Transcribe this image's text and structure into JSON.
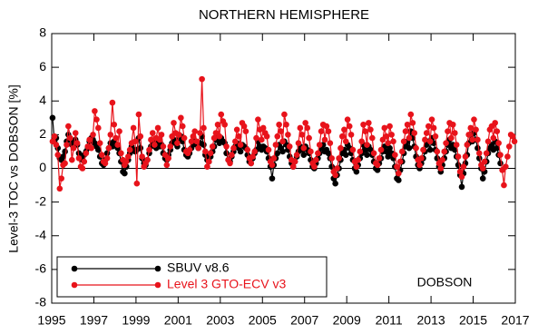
{
  "chart_data": {
    "type": "line",
    "title": "NORTHERN HEMISPHERE",
    "ylabel": "Level-3 TOC vs DOBSON [%]",
    "annotation": "DOBSON",
    "xlim": [
      1995,
      2017
    ],
    "xticks": [
      1995,
      1997,
      1999,
      2001,
      2003,
      2005,
      2007,
      2009,
      2011,
      2013,
      2015,
      2017
    ],
    "ylim": [
      -8,
      8
    ],
    "yticks": [
      -8,
      -6,
      -4,
      -2,
      0,
      2,
      4,
      6,
      8
    ],
    "zero_line": true,
    "legend": "lower left",
    "x": [
      1995.04,
      1995.13,
      1995.21,
      1995.29,
      1995.38,
      1995.46,
      1995.54,
      1995.63,
      1995.71,
      1995.79,
      1995.88,
      1995.96,
      1996.04,
      1996.13,
      1996.21,
      1996.29,
      1996.38,
      1996.46,
      1996.54,
      1996.63,
      1996.71,
      1996.79,
      1996.88,
      1996.96,
      1997.04,
      1997.13,
      1997.21,
      1997.29,
      1997.38,
      1997.46,
      1997.54,
      1997.63,
      1997.71,
      1997.79,
      1997.88,
      1997.96,
      1998.04,
      1998.13,
      1998.21,
      1998.29,
      1998.38,
      1998.46,
      1998.54,
      1998.63,
      1998.71,
      1998.79,
      1998.88,
      1998.96,
      1999.04,
      1999.13,
      1999.21,
      1999.29,
      1999.38,
      1999.46,
      1999.54,
      1999.63,
      1999.71,
      1999.79,
      1999.88,
      1999.96,
      2000.04,
      2000.13,
      2000.21,
      2000.29,
      2000.38,
      2000.46,
      2000.54,
      2000.63,
      2000.71,
      2000.79,
      2000.88,
      2000.96,
      2001.04,
      2001.13,
      2001.21,
      2001.29,
      2001.38,
      2001.46,
      2001.54,
      2001.63,
      2001.71,
      2001.79,
      2001.88,
      2001.96,
      2002.04,
      2002.13,
      2002.21,
      2002.29,
      2002.38,
      2002.46,
      2002.54,
      2002.63,
      2002.71,
      2002.79,
      2002.88,
      2002.96,
      2003.04,
      2003.13,
      2003.21,
      2003.29,
      2003.38,
      2003.46,
      2003.54,
      2003.63,
      2003.71,
      2003.79,
      2003.88,
      2003.96,
      2004.04,
      2004.13,
      2004.21,
      2004.29,
      2004.38,
      2004.46,
      2004.54,
      2004.63,
      2004.71,
      2004.79,
      2004.88,
      2004.96,
      2005.04,
      2005.13,
      2005.21,
      2005.29,
      2005.38,
      2005.46,
      2005.54,
      2005.63,
      2005.71,
      2005.79,
      2005.88,
      2005.96,
      2006.04,
      2006.13,
      2006.21,
      2006.29,
      2006.38,
      2006.46,
      2006.54,
      2006.63,
      2006.71,
      2006.79,
      2006.88,
      2006.96,
      2007.04,
      2007.13,
      2007.21,
      2007.29,
      2007.38,
      2007.46,
      2007.54,
      2007.63,
      2007.71,
      2007.79,
      2007.88,
      2007.96,
      2008.04,
      2008.13,
      2008.21,
      2008.29,
      2008.38,
      2008.46,
      2008.54,
      2008.63,
      2008.71,
      2008.79,
      2008.88,
      2008.96,
      2009.04,
      2009.13,
      2009.21,
      2009.29,
      2009.38,
      2009.46,
      2009.54,
      2009.63,
      2009.71,
      2009.79,
      2009.88,
      2009.96,
      2010.04,
      2010.13,
      2010.21,
      2010.29,
      2010.38,
      2010.46,
      2010.54,
      2010.63,
      2010.71,
      2010.79,
      2010.88,
      2010.96,
      2011.04,
      2011.13,
      2011.21,
      2011.29,
      2011.38,
      2011.46,
      2011.54,
      2011.63,
      2011.71,
      2011.79,
      2011.88,
      2011.96,
      2012.04,
      2012.13,
      2012.21,
      2012.29,
      2012.38,
      2012.46,
      2012.54,
      2012.63,
      2012.71,
      2012.79,
      2012.88,
      2012.96,
      2013.04,
      2013.13,
      2013.21,
      2013.29,
      2013.38,
      2013.46,
      2013.54,
      2013.63,
      2013.71,
      2013.79,
      2013.88,
      2013.96,
      2014.04,
      2014.13,
      2014.21,
      2014.29,
      2014.38,
      2014.46,
      2014.54,
      2014.63,
      2014.71,
      2014.79,
      2014.88,
      2014.96,
      2015.04,
      2015.13,
      2015.21,
      2015.29,
      2015.38,
      2015.46,
      2015.54,
      2015.63,
      2015.71,
      2015.79,
      2015.88,
      2015.96,
      2016.04,
      2016.13,
      2016.21,
      2016.29,
      2016.38,
      2016.46,
      2016.54,
      2016.63,
      2016.71,
      2016.79,
      2016.88,
      2016.96
    ],
    "series": [
      {
        "name": "SBUV v8.6",
        "color": "#000000",
        "values": [
          3.0,
          1.6,
          1.8,
          1.2,
          0.6,
          0.5,
          0.7,
          1.0,
          1.6,
          2.0,
          1.7,
          1.4,
          1.5,
          1.7,
          1.4,
          0.9,
          0.6,
          0.5,
          0.8,
          1.0,
          1.2,
          1.6,
          1.8,
          1.7,
          1.5,
          1.3,
          1.1,
          0.7,
          0.3,
          0.2,
          0.5,
          0.9,
          1.2,
          1.5,
          1.3,
          1.6,
          1.4,
          1.2,
          0.9,
          0.4,
          -0.2,
          -0.3,
          0.1,
          0.5,
          0.9,
          1.3,
          1.1,
          1.0,
          1.1,
          1.8,
          1.2,
          0.6,
          0.3,
          0.2,
          0.5,
          0.9,
          1.3,
          1.6,
          1.4,
          1.2,
          1.6,
          1.3,
          1.4,
          0.9,
          0.6,
          0.5,
          0.8,
          1.1,
          1.5,
          1.7,
          1.5,
          1.3,
          1.7,
          1.9,
          1.6,
          1.1,
          0.8,
          0.7,
          0.9,
          1.2,
          1.4,
          1.6,
          1.4,
          1.2,
          1.5,
          1.9,
          1.4,
          0.8,
          0.5,
          0.4,
          0.7,
          1.0,
          1.3,
          1.7,
          1.8,
          1.5,
          1.8,
          1.6,
          1.5,
          0.9,
          0.5,
          0.4,
          0.7,
          1.0,
          1.3,
          1.5,
          1.2,
          1.0,
          1.4,
          1.3,
          1.2,
          0.8,
          0.4,
          0.3,
          0.6,
          0.9,
          1.1,
          1.6,
          1.3,
          1.1,
          1.3,
          1.2,
          1.0,
          0.6,
          0.1,
          -0.6,
          0.2,
          0.6,
          0.9,
          1.4,
          1.2,
          1.0,
          1.6,
          1.4,
          1.1,
          0.7,
          0.3,
          0.1,
          0.4,
          0.7,
          1.0,
          1.3,
          1.1,
          0.8,
          1.3,
          1.1,
          0.9,
          0.5,
          0.1,
          0.0,
          0.3,
          0.6,
          0.9,
          1.2,
          1.4,
          1.0,
          1.1,
          0.9,
          0.6,
          0.1,
          -0.6,
          -0.9,
          -0.4,
          0.0,
          0.5,
          0.9,
          1.1,
          0.8,
          1.4,
          1.2,
          0.9,
          0.5,
          0.0,
          -0.2,
          0.2,
          0.6,
          0.9,
          1.4,
          1.1,
          0.8,
          1.3,
          1.1,
          0.8,
          0.4,
          0.0,
          -0.1,
          0.3,
          0.6,
          1.0,
          1.3,
          1.0,
          0.7,
          1.2,
          0.9,
          0.6,
          0.1,
          -0.6,
          -0.7,
          -0.1,
          0.4,
          0.9,
          1.3,
          1.6,
          1.2,
          2.2,
          1.8,
          1.3,
          0.7,
          0.2,
          0.0,
          0.3,
          0.6,
          1.0,
          1.4,
          1.6,
          1.1,
          1.8,
          1.5,
          1.1,
          0.6,
          0.1,
          -0.2,
          0.2,
          0.6,
          1.0,
          1.4,
          1.7,
          1.2,
          1.4,
          1.1,
          0.7,
          0.2,
          -0.4,
          -1.1,
          -0.3,
          0.3,
          0.8,
          1.5,
          2.0,
          1.6,
          2.1,
          1.7,
          1.2,
          0.6,
          0.0,
          -0.6,
          -0.2,
          0.4,
          0.9,
          1.2,
          1.4,
          1.1,
          1.6,
          1.2,
          0.8,
          0.3,
          null,
          null,
          null,
          null,
          null,
          null,
          null,
          null
        ]
      },
      {
        "name": "Level 3 GTO-ECV v3",
        "color": "#e8131b",
        "values": [
          1.6,
          1.9,
          1.4,
          0.8,
          -1.2,
          -0.6,
          0.2,
          0.3,
          1.4,
          2.5,
          1.8,
          0.5,
          1.2,
          2.1,
          1.5,
          0.6,
          0.1,
          0.0,
          0.4,
          0.9,
          1.3,
          1.7,
          1.2,
          2.0,
          3.4,
          2.9,
          2.4,
          1.5,
          0.8,
          0.4,
          0.3,
          0.6,
          1.2,
          2.0,
          3.9,
          2.6,
          1.8,
          1.4,
          2.2,
          0.9,
          0.5,
          0.2,
          0.4,
          0.7,
          1.1,
          1.5,
          2.4,
          1.6,
          -0.9,
          3.2,
          1.9,
          0.7,
          0.1,
          0.3,
          0.5,
          1.1,
          1.7,
          2.1,
          1.4,
          1.8,
          2.4,
          1.7,
          2.0,
          1.3,
          0.8,
          0.2,
          0.6,
          1.3,
          1.9,
          2.7,
          2.1,
          1.5,
          2.0,
          3.0,
          2.5,
          1.8,
          1.0,
          0.9,
          1.1,
          1.6,
          1.9,
          2.2,
          1.6,
          1.2,
          2.1,
          5.3,
          2.4,
          1.0,
          0.1,
          0.4,
          0.9,
          1.3,
          1.8,
          2.1,
          2.6,
          1.9,
          3.2,
          2.8,
          2.6,
          1.3,
          0.5,
          0.3,
          0.8,
          1.2,
          1.6,
          2.3,
          1.9,
          1.4,
          2.7,
          2.5,
          2.2,
          1.1,
          0.6,
          0.3,
          0.7,
          1.0,
          1.8,
          2.9,
          2.3,
          1.7,
          2.4,
          2.1,
          1.9,
          1.1,
          0.4,
          0.2,
          0.6,
          1.4,
          1.9,
          2.6,
          2.2,
          1.6,
          3.2,
          2.6,
          2.0,
          1.3,
          0.5,
          0.1,
          0.4,
          0.8,
          1.5,
          2.4,
          2.0,
          1.2,
          2.7,
          2.4,
          1.8,
          1.0,
          0.3,
          0.1,
          0.5,
          0.9,
          1.4,
          2.2,
          2.6,
          1.7,
          2.5,
          2.2,
          1.5,
          0.6,
          -0.2,
          -0.4,
          0.0,
          0.6,
          1.2,
          1.9,
          2.3,
          1.6,
          2.9,
          2.5,
          2.0,
          1.1,
          0.4,
          0.1,
          0.5,
          1.0,
          1.6,
          2.6,
          2.2,
          1.4,
          2.7,
          2.3,
          1.8,
          0.9,
          0.3,
          0.2,
          0.6,
          1.1,
          1.7,
          2.4,
          1.9,
          1.5,
          2.5,
          2.0,
          1.6,
          0.8,
          0.1,
          -0.3,
          0.4,
          1.0,
          1.6,
          2.2,
          2.6,
          1.8,
          3.2,
          2.7,
          2.1,
          1.2,
          0.5,
          0.2,
          0.6,
          1.1,
          1.7,
          2.1,
          2.5,
          1.6,
          2.9,
          2.4,
          1.9,
          1.0,
          0.3,
          0.0,
          0.5,
          1.0,
          1.5,
          2.2,
          2.7,
          1.8,
          2.6,
          2.1,
          1.4,
          0.7,
          -0.2,
          -0.5,
          0.1,
          0.7,
          1.4,
          2.0,
          2.4,
          1.7,
          2.9,
          2.3,
          1.7,
          0.9,
          0.2,
          0.0,
          0.4,
          0.9,
          1.6,
          2.3,
          2.5,
          1.8,
          2.7,
          2.2,
          1.5,
          0.8,
          -0.1,
          -1.0,
          0.1,
          0.7,
          1.3,
          2.0,
          1.9,
          1.6
        ]
      }
    ]
  }
}
